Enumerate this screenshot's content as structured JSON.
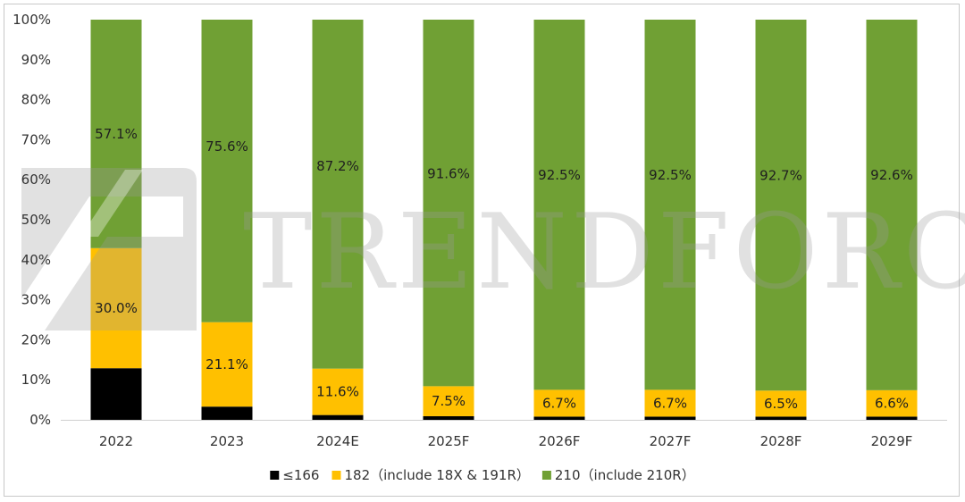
{
  "watermark": {
    "text": "TRENDFORCE"
  },
  "chart_data": {
    "type": "bar",
    "stacked": true,
    "categories": [
      "2022",
      "2023",
      "2024E",
      "2025F",
      "2026F",
      "2027F",
      "2028F",
      "2029F"
    ],
    "series": [
      {
        "name": "≤166",
        "color": "#000000",
        "values": [
          12.9,
          3.3,
          1.2,
          0.9,
          0.8,
          0.8,
          0.8,
          0.8
        ]
      },
      {
        "name": "182（include 18X & 191R）",
        "color": "#ffc000",
        "values": [
          30.0,
          21.1,
          11.6,
          7.5,
          6.7,
          6.7,
          6.5,
          6.6
        ]
      },
      {
        "name": "210（include 210R）",
        "color": "#70a034",
        "values": [
          57.1,
          75.6,
          87.2,
          91.6,
          92.5,
          92.5,
          92.7,
          92.6
        ]
      }
    ],
    "data_labels": {
      "182（include 18X & 191R）": [
        "30.0%",
        "21.1%",
        "11.6%",
        "7.5%",
        "6.7%",
        "6.7%",
        "6.5%",
        "6.6%"
      ],
      "210（include 210R）": [
        "57.1%",
        "75.6%",
        "87.2%",
        "91.6%",
        "92.5%",
        "92.5%",
        "92.7%",
        "92.6%"
      ]
    },
    "yticks": [
      "0%",
      "10%",
      "20%",
      "30%",
      "40%",
      "50%",
      "60%",
      "70%",
      "80%",
      "90%",
      "100%"
    ],
    "ylim": [
      0,
      100
    ],
    "legend": "bottom",
    "grid": false
  }
}
